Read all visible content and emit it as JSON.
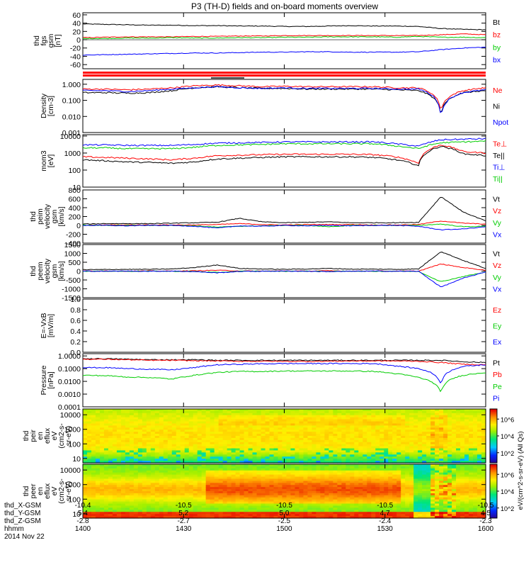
{
  "title": "P3 (TH-D) fields and on-board moments overview",
  "chart_data": [
    {
      "type": "line",
      "panel": "fgs",
      "ylabel": [
        "thd",
        "fgs",
        "gsm",
        "[nT]"
      ],
      "yscale": "linear",
      "ylim": [
        -70,
        65
      ],
      "yticks": [
        60,
        40,
        20,
        0,
        -20,
        -40,
        -60
      ],
      "ticklabels": [
        "60",
        "40",
        "20",
        "0",
        "-20",
        "-40",
        "-60"
      ],
      "series": [
        {
          "name": "Bt",
          "color": "#000000",
          "values": [
            38,
            37,
            36,
            35,
            35,
            34,
            34,
            33,
            33,
            32,
            32,
            33,
            34,
            33,
            33,
            32,
            27,
            25,
            24
          ]
        },
        {
          "name": "bz",
          "color": "#ff0000",
          "values": [
            5,
            6,
            7,
            7,
            7,
            8,
            8,
            9,
            9,
            10,
            10,
            10,
            10,
            10,
            10,
            10,
            12,
            14,
            12
          ]
        },
        {
          "name": "by",
          "color": "#00cc00",
          "values": [
            3,
            3,
            4,
            4,
            5,
            4,
            4,
            5,
            5,
            6,
            6,
            7,
            7,
            7,
            6,
            8,
            6,
            6,
            5
          ]
        },
        {
          "name": "bx",
          "color": "#0000ff",
          "values": [
            -37,
            -36,
            -35,
            -34,
            -33,
            -32,
            -32,
            -31,
            -30,
            -30,
            -29,
            -29,
            -30,
            -30,
            -30,
            -29,
            -24,
            -20,
            -18
          ]
        }
      ]
    },
    {
      "type": "line",
      "panel": "density",
      "ylabel": [
        "Density",
        "[cm-3]"
      ],
      "yscale": "log",
      "ylim": [
        0.001,
        2
      ],
      "yticks": [
        1,
        0.1,
        0.01,
        0.001
      ],
      "ticklabels": [
        "1.000",
        "0.100",
        "0.010",
        "0.001"
      ],
      "series": [
        {
          "name": "Ne",
          "color": "#ff0000",
          "values": [
            0.5,
            0.5,
            0.45,
            0.5,
            0.6,
            0.8,
            0.9,
            0.8,
            0.7,
            0.75,
            0.7,
            0.7,
            0.7,
            0.7,
            0.6,
            0.6,
            0.02,
            0.4,
            0.6
          ]
        },
        {
          "name": "Ni",
          "color": "#000000",
          "values": [
            0.3,
            0.3,
            0.28,
            0.3,
            0.4,
            0.6,
            0.7,
            0.6,
            0.55,
            0.55,
            0.5,
            0.5,
            0.5,
            0.5,
            0.45,
            0.4,
            0.01,
            0.3,
            0.4
          ]
        },
        {
          "name": "Npot",
          "color": "#0000ff",
          "values": [
            0.4,
            0.4,
            0.35,
            0.4,
            0.5,
            0.6,
            0.7,
            0.6,
            0.55,
            0.6,
            0.55,
            0.55,
            0.55,
            0.55,
            0.5,
            0.5,
            0.005,
            0.3,
            0.45
          ]
        }
      ]
    },
    {
      "type": "line",
      "panel": "temperature",
      "ylabel": [
        "mom3",
        "[eV]"
      ],
      "yscale": "log",
      "ylim": [
        10,
        12000
      ],
      "yticks": [
        10000,
        1000,
        100,
        10
      ],
      "ticklabels": [
        "10000",
        "1000",
        "100",
        "10"
      ],
      "series": [
        {
          "name": "Te⊥",
          "color": "#ff0000",
          "values": [
            600,
            550,
            500,
            450,
            400,
            500,
            700,
            750,
            800,
            850,
            850,
            850,
            850,
            800,
            600,
            250,
            3000,
            1200,
            1000
          ]
        },
        {
          "name": "Te||",
          "color": "#000000",
          "values": [
            400,
            350,
            300,
            280,
            250,
            300,
            450,
            500,
            550,
            600,
            600,
            600,
            600,
            550,
            400,
            180,
            2500,
            900,
            700
          ]
        },
        {
          "name": "Ti⊥",
          "color": "#0000ff",
          "values": [
            3000,
            3000,
            2800,
            2800,
            2800,
            3200,
            3800,
            4000,
            4200,
            4500,
            4500,
            4500,
            4500,
            4500,
            3500,
            2500,
            6000,
            6500,
            7000
          ]
        },
        {
          "name": "Ti||",
          "color": "#00cc00",
          "values": [
            2000,
            2000,
            1800,
            1800,
            1800,
            2200,
            2800,
            3000,
            3200,
            3500,
            3500,
            3500,
            3500,
            3500,
            2600,
            1800,
            4000,
            4500,
            5000
          ]
        }
      ]
    },
    {
      "type": "line",
      "panel": "peim",
      "ylabel": [
        "thd",
        "peim",
        "velocity",
        "gsm",
        "[km/s]"
      ],
      "yscale": "linear",
      "ylim": [
        -400,
        800
      ],
      "yticks": [
        800,
        600,
        400,
        200,
        0,
        -200,
        -400
      ],
      "ticklabels": [
        "800",
        "600",
        "400",
        "200",
        "0",
        "-200",
        "-400"
      ],
      "series": [
        {
          "name": "Vt",
          "color": "#000000",
          "values": [
            30,
            40,
            40,
            40,
            50,
            60,
            70,
            160,
            80,
            60,
            70,
            80,
            60,
            60,
            60,
            70,
            650,
            300,
            100
          ]
        },
        {
          "name": "Vz",
          "color": "#ff0000",
          "values": [
            0,
            10,
            10,
            10,
            10,
            10,
            20,
            40,
            20,
            10,
            20,
            20,
            20,
            10,
            10,
            20,
            100,
            50,
            30
          ]
        },
        {
          "name": "Vy",
          "color": "#00cc00",
          "values": [
            5,
            0,
            0,
            0,
            0,
            -10,
            -40,
            -20,
            -10,
            0,
            0,
            -30,
            0,
            0,
            0,
            0,
            30,
            -30,
            -20
          ]
        },
        {
          "name": "Vx",
          "color": "#0000ff",
          "values": [
            0,
            0,
            -10,
            0,
            0,
            -20,
            -60,
            -10,
            -20,
            0,
            -10,
            0,
            -10,
            0,
            0,
            -20,
            -100,
            -80,
            -30
          ]
        }
      ]
    },
    {
      "type": "line",
      "panel": "peem",
      "ylabel": [
        "thd",
        "peem",
        "velocity",
        "gsm",
        "[km/s]"
      ],
      "yscale": "linear",
      "ylim": [
        -1500,
        1500
      ],
      "yticks": [
        1500,
        1000,
        500,
        0,
        -500,
        -1000,
        -1500
      ],
      "ticklabels": [
        "1500",
        "1000",
        "500",
        "0",
        "-500",
        "-1000",
        "-1500"
      ],
      "series": [
        {
          "name": "Vt",
          "color": "#000000",
          "values": [
            80,
            90,
            100,
            100,
            120,
            200,
            350,
            150,
            120,
            100,
            120,
            150,
            110,
            110,
            100,
            120,
            1100,
            600,
            150
          ]
        },
        {
          "name": "Vz",
          "color": "#ff0000",
          "values": [
            0,
            10,
            0,
            10,
            0,
            20,
            50,
            10,
            0,
            10,
            0,
            20,
            0,
            10,
            0,
            0,
            400,
            200,
            50
          ]
        },
        {
          "name": "Vy",
          "color": "#00cc00",
          "values": [
            -10,
            0,
            -10,
            0,
            -10,
            -20,
            -80,
            -10,
            0,
            -10,
            0,
            -20,
            0,
            -10,
            0,
            -20,
            -600,
            -300,
            -60
          ]
        },
        {
          "name": "Vx",
          "color": "#0000ff",
          "values": [
            0,
            -10,
            0,
            -10,
            0,
            -30,
            -100,
            -20,
            -10,
            0,
            -10,
            -30,
            -10,
            0,
            -10,
            -10,
            -900,
            -400,
            -50
          ]
        }
      ]
    },
    {
      "type": "line",
      "panel": "efield",
      "ylabel": [
        "E=-VxB",
        "[mV/m]"
      ],
      "yscale": "linear",
      "ylim": [
        0,
        1
      ],
      "yticks": [
        1.0,
        0.8,
        0.6,
        0.4,
        0.2,
        0.0
      ],
      "ticklabels": [
        "1.0",
        "0.8",
        "0.6",
        "0.4",
        "0.2",
        "0.0"
      ],
      "series": [
        {
          "name": "Ez",
          "color": "#ff0000",
          "values": []
        },
        {
          "name": "Ey",
          "color": "#00cc00",
          "values": []
        },
        {
          "name": "Ex",
          "color": "#0000ff",
          "values": []
        }
      ]
    },
    {
      "type": "line",
      "panel": "pressure",
      "ylabel": [
        "Pressure",
        "[nPa]"
      ],
      "yscale": "log",
      "ylim": [
        0.0001,
        1.5
      ],
      "yticks": [
        1,
        0.1,
        0.01,
        0.001,
        0.0001
      ],
      "ticklabels": [
        "1.0000",
        "0.1000",
        "0.0100",
        "0.0010",
        "0.0001"
      ],
      "series": [
        {
          "name": "Pt",
          "color": "#000000",
          "values": [
            0.6,
            0.6,
            0.55,
            0.5,
            0.5,
            0.5,
            0.45,
            0.45,
            0.45,
            0.45,
            0.45,
            0.45,
            0.45,
            0.45,
            0.45,
            0.45,
            0.45,
            0.35,
            0.3
          ]
        },
        {
          "name": "Pb",
          "color": "#ff0000",
          "values": [
            0.55,
            0.55,
            0.5,
            0.45,
            0.45,
            0.42,
            0.4,
            0.38,
            0.38,
            0.37,
            0.37,
            0.38,
            0.4,
            0.4,
            0.4,
            0.38,
            0.3,
            0.22,
            0.2
          ]
        },
        {
          "name": "Pe",
          "color": "#00cc00",
          "values": [
            0.03,
            0.028,
            0.022,
            0.02,
            0.015,
            0.03,
            0.05,
            0.06,
            0.06,
            0.065,
            0.065,
            0.065,
            0.065,
            0.06,
            0.04,
            0.02,
            0.001,
            0.03,
            0.05
          ]
        },
        {
          "name": "Pi",
          "color": "#0000ff",
          "values": [
            0.12,
            0.12,
            0.1,
            0.09,
            0.08,
            0.12,
            0.2,
            0.22,
            0.24,
            0.25,
            0.25,
            0.25,
            0.25,
            0.25,
            0.16,
            0.1,
            0.005,
            0.15,
            0.2
          ]
        }
      ]
    },
    {
      "type": "heatmap",
      "panel": "peir",
      "ylabel": [
        "thd",
        "peir",
        "en",
        "eflux",
        "eV",
        "(cm2-s-",
        "sr-eV)"
      ],
      "yscale": "log",
      "ylim": [
        5,
        25000
      ],
      "yticks": [
        10000,
        1000,
        100,
        10
      ],
      "ticklabels": [
        "10000",
        "1000",
        "100",
        "10"
      ],
      "colorbar_label": "eV/(cm^2-s-sr-eV) (All Qs)"
    },
    {
      "type": "heatmap",
      "panel": "peer",
      "ylabel": [
        "thd",
        "peer",
        "en",
        "eflux",
        "eV",
        "(cm2-s-",
        "sr-eV)"
      ],
      "yscale": "log",
      "ylim": [
        5,
        25000
      ],
      "yticks": [
        10000,
        1000,
        100,
        10
      ],
      "ticklabels": [
        "10000",
        "1000",
        "100",
        "10"
      ],
      "colorbar_label": "eV/(cm^2-s-sr-eV) (All Qs)"
    }
  ],
  "colorbar_ticks": [
    "10^6",
    "10^4",
    "10^2"
  ],
  "xaxis": {
    "rows": [
      {
        "label": "thd_X-GSM",
        "values": [
          "-10.4",
          "-10.5",
          "-10.5",
          "-10.5",
          "-10.5"
        ]
      },
      {
        "label": "thd_Y-GSM",
        "values": [
          "5.4",
          "5.2",
          "5.0",
          "4.7",
          "4.5"
        ]
      },
      {
        "label": "thd_Z-GSM",
        "values": [
          "-2.8",
          "-2.7",
          "-2.5",
          "-2.4",
          "-2.3"
        ]
      },
      {
        "label": "hhmm",
        "values": [
          "1400",
          "1430",
          "1500",
          "1530",
          "1600"
        ]
      }
    ],
    "date": "2014 Nov 22"
  }
}
